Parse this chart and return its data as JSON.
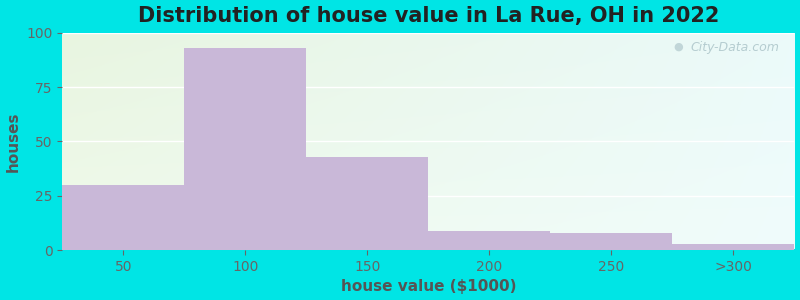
{
  "title": "Distribution of house value in La Rue, OH in 2022",
  "xlabel": "house value ($1000)",
  "ylabel": "houses",
  "bar_values": [
    30,
    93,
    43,
    9,
    8,
    3
  ],
  "bar_labels": [
    "50",
    "100",
    "150",
    "200",
    "250",
    ">300"
  ],
  "bar_color": "#c9b8d8",
  "bar_edgecolor": "#c9b8d8",
  "background_outer": "#00e5e5",
  "bg_topleft": "#e8f5e0",
  "bg_topright": "#e0f5f5",
  "bg_bottomright": "#d8f5f5",
  "yticks": [
    0,
    25,
    50,
    75,
    100
  ],
  "ylim": [
    0,
    100
  ],
  "title_fontsize": 15,
  "axis_label_fontsize": 11,
  "tick_fontsize": 10,
  "watermark_text": "City-Data.com",
  "bar_width": 1.0
}
